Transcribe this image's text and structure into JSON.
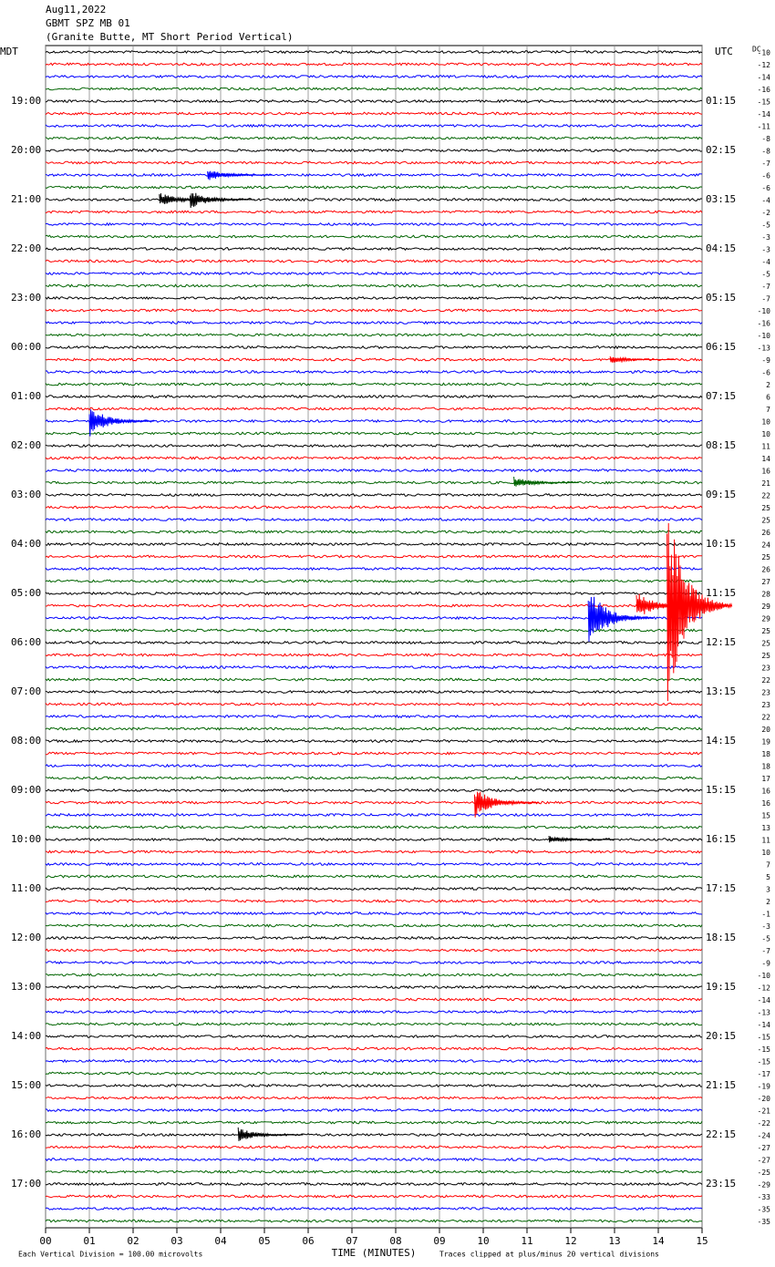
{
  "chart_data": {
    "type": "helicorder",
    "title": "Aug11,2022",
    "subtitle": "GBMT SPZ MB 01",
    "caption": "(Granite Butte, MT Short Period Vertical)",
    "left_header": "MDT",
    "right_header": "UTC",
    "dc_header": "DC",
    "left_labels": [
      "19:00",
      "20:00",
      "21:00",
      "22:00",
      "23:00",
      "00:00",
      "01:00",
      "02:00",
      "03:00",
      "04:00",
      "05:00",
      "06:00",
      "07:00",
      "08:00",
      "09:00",
      "10:00",
      "11:00",
      "12:00",
      "13:00",
      "14:00",
      "15:00",
      "16:00",
      "17:00"
    ],
    "right_labels": [
      "01:15",
      "02:15",
      "03:15",
      "04:15",
      "05:15",
      "06:15",
      "07:15",
      "08:15",
      "09:15",
      "10:15",
      "11:15",
      "12:15",
      "13:15",
      "14:15",
      "15:15",
      "16:15",
      "17:15",
      "18:15",
      "19:15",
      "20:15",
      "21:15",
      "22:15",
      "23:15"
    ],
    "dc_values": [
      -10,
      -12,
      -14,
      -16,
      -15,
      -14,
      -11,
      -8,
      -8,
      -7,
      -6,
      -6,
      -4,
      -2,
      -5,
      -3,
      -3,
      -4,
      -5,
      -7,
      -7,
      -10,
      -16,
      -10,
      -13,
      -9,
      -6,
      2,
      6,
      7,
      10,
      10,
      11,
      14,
      16,
      21,
      22,
      25,
      25,
      26,
      24,
      25,
      26,
      27,
      28,
      29,
      29,
      25,
      25,
      25,
      23,
      22,
      23,
      23,
      22,
      20,
      19,
      18,
      18,
      17,
      16,
      16,
      15,
      13,
      11,
      10,
      7,
      5,
      3,
      2,
      -1,
      -3,
      -5,
      -7,
      -9,
      -10,
      -12,
      -14,
      -13,
      -14,
      -15,
      -15,
      -15,
      -17,
      -19,
      -20,
      -21,
      -22,
      -24,
      -27,
      -27,
      -25,
      -29,
      -33,
      -35,
      -35
    ],
    "colors": [
      "#000000",
      "#ff0000",
      "#0000ff",
      "#006400"
    ],
    "xlim": [
      0,
      15
    ],
    "xticks": [
      {
        "value": 0,
        "label": "00"
      },
      {
        "value": 1,
        "label": "01"
      },
      {
        "value": 2,
        "label": "02"
      },
      {
        "value": 3,
        "label": "03"
      },
      {
        "value": 4,
        "label": "04"
      },
      {
        "value": 5,
        "label": "05"
      },
      {
        "value": 6,
        "label": "06"
      },
      {
        "value": 7,
        "label": "07"
      },
      {
        "value": 8,
        "label": "08"
      },
      {
        "value": 9,
        "label": "09"
      },
      {
        "value": 10,
        "label": "10"
      },
      {
        "value": 11,
        "label": "11"
      },
      {
        "value": 12,
        "label": "12"
      },
      {
        "value": 13,
        "label": "13"
      },
      {
        "value": 14,
        "label": "14"
      },
      {
        "value": 15,
        "label": "15"
      }
    ],
    "xlabel": "TIME (MINUTES)",
    "grid": true,
    "footer_left": "Each Vertical Division =  100.00 microvolts",
    "footer_right": "Traces clipped at plus/minus 20 vertical divisions",
    "events": [
      {
        "row": 10,
        "minute": 3.7,
        "amplitude": 0.5
      },
      {
        "row": 12,
        "minute": 2.6,
        "amplitude": 0.6
      },
      {
        "row": 12,
        "minute": 3.3,
        "amplitude": 0.8
      },
      {
        "row": 25,
        "minute": 12.9,
        "amplitude": 0.3
      },
      {
        "row": 30,
        "minute": 1.0,
        "amplitude": 1.3
      },
      {
        "row": 35,
        "minute": 10.7,
        "amplitude": 0.5
      },
      {
        "row": 45,
        "minute": 13.5,
        "amplitude": 1.2
      },
      {
        "row": 45,
        "minute": 14.2,
        "amplitude": 8.5
      },
      {
        "row": 46,
        "minute": 12.4,
        "amplitude": 2.6
      },
      {
        "row": 61,
        "minute": 9.8,
        "amplitude": 1.3
      },
      {
        "row": 64,
        "minute": 11.5,
        "amplitude": 0.3
      },
      {
        "row": 88,
        "minute": 4.4,
        "amplitude": 0.6
      }
    ]
  }
}
